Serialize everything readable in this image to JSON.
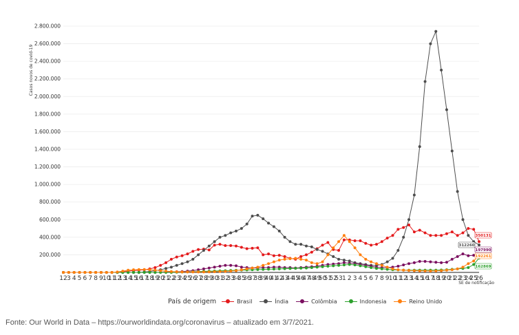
{
  "chart_data": {
    "type": "line",
    "ylabel": "Casos novos de covid-19",
    "xlabel": "SE de notificação",
    "ylim": [
      0,
      2800000
    ],
    "yticks": [
      200000,
      400000,
      600000,
      800000,
      1000000,
      1200000,
      1400000,
      1600000,
      1800000,
      2000000,
      2200000,
      2400000,
      2600000,
      2800000
    ],
    "ytick_labels": [
      "200.000",
      "400.000",
      "600.000",
      "800.000",
      "1.000.000",
      "1.200.000",
      "1.400.000",
      "1.600.000",
      "1.800.000",
      "2.000.000",
      "2.200.000",
      "2.400.000",
      "2.600.000",
      "2.800.000"
    ],
    "x": [
      "12",
      "3",
      "4",
      "5",
      "6",
      "7",
      "8",
      "9",
      "10",
      "11",
      "12",
      "13",
      "14",
      "15",
      "16",
      "17",
      "18",
      "19",
      "20",
      "21",
      "22",
      "23",
      "24",
      "25",
      "26",
      "27",
      "28",
      "29",
      "30",
      "31",
      "32",
      "33",
      "34",
      "35",
      "36",
      "37",
      "38",
      "39",
      "40",
      "41",
      "42",
      "43",
      "44",
      "45",
      "46",
      "47",
      "48",
      "49",
      "50",
      "51",
      "52",
      "53",
      "1",
      "2",
      "3",
      "4",
      "5",
      "6",
      "7",
      "8",
      "9",
      "10",
      "11",
      "12",
      "13",
      "14",
      "15",
      "16",
      "17",
      "18",
      "19",
      "20",
      "21",
      "22",
      "23",
      "24",
      "25",
      "26"
    ],
    "legend_title": "País de origem",
    "legend_position": "bottom",
    "grid": true,
    "series": [
      {
        "name": "Brasil",
        "color": "#e41a1c",
        "end_label": "350131",
        "values": [
          0,
          0,
          0,
          0,
          0,
          0,
          0,
          0,
          0,
          0,
          2000,
          8000,
          15000,
          20000,
          25000,
          30000,
          40000,
          55000,
          80000,
          110000,
          150000,
          175000,
          190000,
          210000,
          240000,
          260000,
          265000,
          255000,
          310000,
          320000,
          305000,
          305000,
          300000,
          285000,
          270000,
          275000,
          280000,
          200000,
          210000,
          190000,
          195000,
          180000,
          160000,
          150000,
          180000,
          200000,
          230000,
          270000,
          310000,
          340000,
          260000,
          250000,
          370000,
          370000,
          360000,
          360000,
          330000,
          310000,
          320000,
          350000,
          390000,
          420000,
          490000,
          510000,
          540000,
          460000,
          480000,
          450000,
          420000,
          420000,
          420000,
          440000,
          460000,
          420000,
          450000,
          500000,
          490000,
          350131
        ]
      },
      {
        "name": "Índia",
        "color": "#4d4d4d",
        "end_label": "312260",
        "values": [
          0,
          0,
          0,
          0,
          0,
          0,
          0,
          0,
          0,
          0,
          0,
          0,
          0,
          0,
          0,
          5000,
          10000,
          20000,
          30000,
          45000,
          60000,
          80000,
          100000,
          120000,
          150000,
          200000,
          250000,
          300000,
          350000,
          400000,
          420000,
          450000,
          470000,
          500000,
          550000,
          640000,
          650000,
          610000,
          560000,
          520000,
          470000,
          400000,
          350000,
          320000,
          320000,
          300000,
          290000,
          260000,
          240000,
          210000,
          180000,
          150000,
          140000,
          130000,
          110000,
          100000,
          90000,
          80000,
          80000,
          90000,
          120000,
          160000,
          250000,
          400000,
          600000,
          880000,
          1430000,
          2170000,
          2600000,
          2740000,
          2300000,
          1850000,
          1380000,
          920000,
          600000,
          420000,
          350000,
          312260
        ]
      },
      {
        "name": "Colômbia",
        "color": "#7b1060",
        "end_label": "197990",
        "values": [
          0,
          0,
          0,
          0,
          0,
          0,
          0,
          0,
          0,
          0,
          0,
          0,
          0,
          0,
          0,
          0,
          0,
          0,
          2000,
          4000,
          6000,
          8000,
          10000,
          15000,
          20000,
          30000,
          40000,
          50000,
          60000,
          70000,
          80000,
          80000,
          75000,
          60000,
          55000,
          50000,
          50000,
          55000,
          55000,
          60000,
          60000,
          55000,
          55000,
          50000,
          55000,
          60000,
          65000,
          70000,
          80000,
          90000,
          95000,
          100000,
          110000,
          105000,
          100000,
          90000,
          80000,
          70000,
          60000,
          55000,
          55000,
          60000,
          70000,
          85000,
          100000,
          110000,
          125000,
          125000,
          120000,
          115000,
          110000,
          115000,
          150000,
          180000,
          210000,
          190000,
          195000,
          197990
        ]
      },
      {
        "name": "Indonesia",
        "color": "#2ca02c",
        "end_label": "162869",
        "values": [
          0,
          0,
          0,
          0,
          0,
          0,
          0,
          0,
          0,
          0,
          0,
          0,
          0,
          0,
          0,
          0,
          0,
          0,
          0,
          0,
          0,
          2000,
          4000,
          6000,
          8000,
          10000,
          12000,
          14000,
          16000,
          18000,
          20000,
          22000,
          24000,
          26000,
          28000,
          30000,
          32000,
          34000,
          36000,
          38000,
          40000,
          42000,
          44000,
          46000,
          48000,
          50000,
          55000,
          60000,
          65000,
          70000,
          75000,
          80000,
          85000,
          90000,
          85000,
          75000,
          65000,
          55000,
          45000,
          40000,
          35000,
          30000,
          28000,
          26000,
          25000,
          25000,
          25000,
          25000,
          25000,
          25000,
          27000,
          30000,
          35000,
          40000,
          45000,
          55000,
          90000,
          162869
        ]
      },
      {
        "name": "Reino Unido",
        "color": "#ff7f0e",
        "end_label": "192261",
        "values": [
          0,
          0,
          0,
          0,
          0,
          0,
          0,
          0,
          0,
          0,
          5000,
          15000,
          25000,
          30000,
          32000,
          33000,
          30000,
          25000,
          20000,
          15000,
          10000,
          7000,
          5000,
          5000,
          5000,
          5000,
          5000,
          6000,
          8000,
          10000,
          12000,
          15000,
          20000,
          30000,
          40000,
          50000,
          60000,
          80000,
          100000,
          120000,
          140000,
          150000,
          155000,
          160000,
          150000,
          140000,
          110000,
          100000,
          120000,
          200000,
          280000,
          350000,
          420000,
          350000,
          280000,
          200000,
          150000,
          120000,
          100000,
          80000,
          60000,
          40000,
          30000,
          25000,
          22000,
          20000,
          18000,
          17000,
          16000,
          17000,
          20000,
          25000,
          30000,
          40000,
          60000,
          100000,
          130000,
          192261
        ]
      }
    ]
  },
  "footer": "Fonte: Our World in Data – https://ourworldindata.org/coronavirus – atualizado em 3/7/2021."
}
